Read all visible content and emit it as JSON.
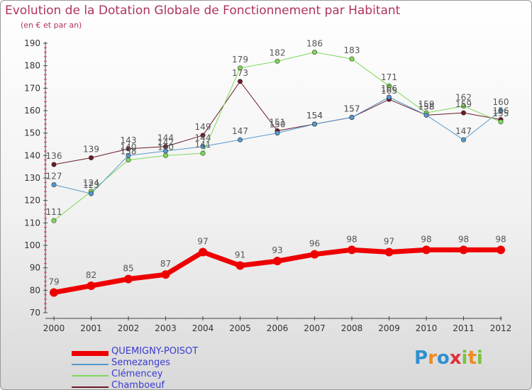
{
  "title": "Evolution de la Dotation Globale de Fonctionnement par Habitant",
  "subtitle": "(en € et par an)",
  "logo": {
    "text": "Proxiti",
    "letters": [
      "P",
      "r",
      "o",
      "x",
      "i",
      "t",
      "i"
    ],
    "colors": [
      "#2f8fd0",
      "#f08a1e",
      "#2f8fd0",
      "#e0303a",
      "#7cc242",
      "#f08a1e",
      "#7cc242"
    ]
  },
  "colors": {
    "title": "#b0325e",
    "axis": "#444444",
    "ticklabel": "#333333",
    "datalabel": "#555555",
    "legend_text": "#3b3bcf"
  },
  "chart_data": {
    "type": "line",
    "x": [
      "2000",
      "2001",
      "2002",
      "2003",
      "2004",
      "2005",
      "2006",
      "2007",
      "2008",
      "2009",
      "2010",
      "2011",
      "2012"
    ],
    "ylim": [
      70,
      190
    ],
    "yticks": [
      "70",
      "80",
      "90",
      "100",
      "110",
      "120",
      "130",
      "140",
      "150",
      "160",
      "170",
      "180",
      "190"
    ],
    "grid": false,
    "legend_position": "bottom-left",
    "series": [
      {
        "name": "Chamboeuf",
        "color": "#6b1a26",
        "width": 1,
        "values": [
          136,
          139,
          143,
          144,
          149,
          173,
          151,
          154,
          157,
          165,
          158,
          159,
          156
        ],
        "labels": [
          "136",
          "139",
          "143",
          "144",
          "149",
          "173",
          "151",
          "154",
          "157",
          "165",
          "158",
          "159",
          "156"
        ]
      },
      {
        "name": "Clémencey",
        "color": "#7ed957",
        "width": 1,
        "values": [
          111,
          124,
          138,
          140,
          141,
          179,
          182,
          186,
          183,
          171,
          159,
          162,
          155
        ],
        "labels": [
          "111",
          "124",
          "138",
          "140",
          "141",
          "179",
          "182",
          "186",
          "183",
          "171",
          "159",
          "162",
          "155"
        ]
      },
      {
        "name": "Semezanges",
        "color": "#5599cc",
        "width": 1,
        "values": [
          127,
          123,
          140,
          142,
          144,
          147,
          150,
          154,
          157,
          166,
          158,
          147,
          160
        ],
        "labels": [
          "127",
          "123",
          "140",
          "142",
          "144",
          "147",
          "150",
          "154",
          "157",
          "166",
          "158",
          "147",
          "160"
        ]
      },
      {
        "name": "QUEMIGNY-POISOT",
        "color": "#ee0000",
        "width": 7,
        "values": [
          79,
          82,
          85,
          87,
          97,
          91,
          93,
          96,
          98,
          97,
          98,
          98,
          98
        ],
        "labels": [
          "79",
          "82",
          "85",
          "87",
          "97",
          "91",
          "93",
          "96",
          "98",
          "97",
          "98",
          "98",
          "98"
        ]
      }
    ],
    "legend": [
      "QUEMIGNY-POISOT",
      "Semezanges",
      "Clémencey",
      "Chamboeuf"
    ]
  }
}
